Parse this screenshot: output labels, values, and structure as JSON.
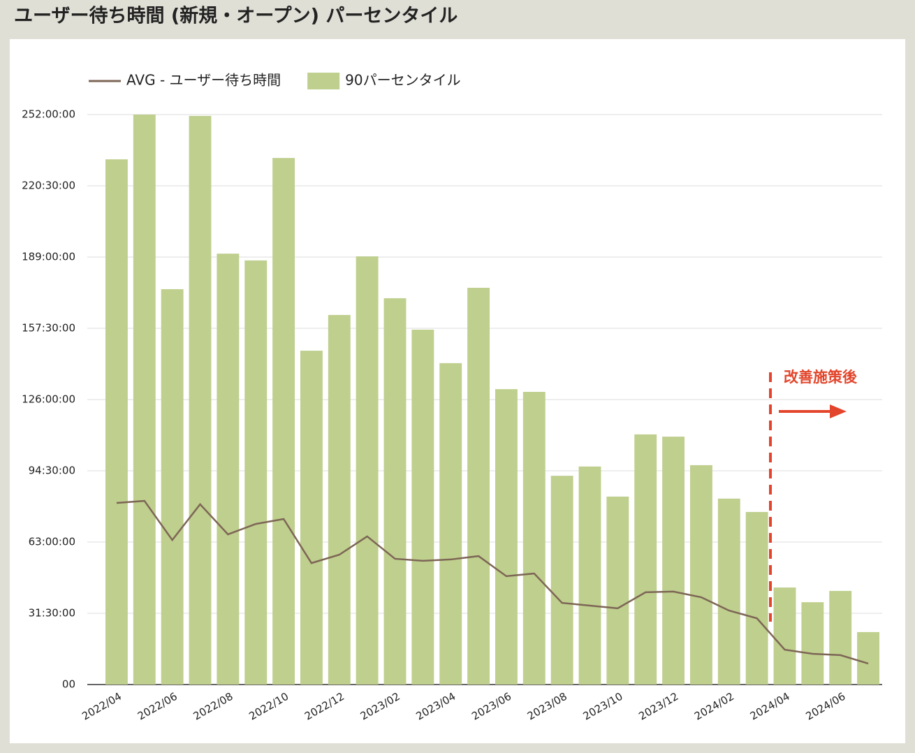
{
  "chart_data": {
    "type": "bar-line",
    "title": "ユーザー待ち時間 (新規・オープン) パーセンタイル",
    "annotation": "改善施策後",
    "categories": [
      "2022/04",
      null,
      "2022/06",
      null,
      "2022/08",
      null,
      "2022/10",
      null,
      "2022/12",
      null,
      "2023/02",
      null,
      "2023/04",
      null,
      "2023/06",
      null,
      "2023/08",
      null,
      "2023/10",
      null,
      "2023/12",
      null,
      "2024/02",
      null,
      "2024/04",
      null,
      "2024/06",
      null
    ],
    "series": [
      {
        "name": "AVG - ユーザー待ち時間",
        "type": "line",
        "color": "#7d6656",
        "values": [
          80.3,
          81.2,
          63.9,
          79.7,
          66.4,
          71.0,
          73.2,
          53.7,
          57.4,
          65.5,
          55.6,
          54.7,
          55.3,
          56.8,
          47.9,
          49.1,
          36.1,
          34.9,
          33.7,
          40.8,
          41.1,
          38.6,
          32.7,
          29.3,
          15.4,
          13.6,
          13.0,
          9.3
        ]
      },
      {
        "name": "90パーセンタイル",
        "type": "bar",
        "color": "#bfcf8e",
        "values": [
          232.2,
          252,
          174.8,
          251.4,
          190.5,
          187.5,
          232.8,
          147.6,
          163.4,
          189.3,
          170.8,
          156.9,
          142.1,
          175.4,
          130.6,
          129.4,
          92.3,
          96.4,
          83.1,
          110.6,
          109.6,
          97.0,
          82.2,
          76.3,
          42.9,
          36.4,
          41.4,
          23.2
        ]
      }
    ],
    "ylim": [
      0,
      252
    ],
    "yticks": [
      {
        "value": 0,
        "label": "00"
      },
      {
        "value": 31.5,
        "label": "31:30:00"
      },
      {
        "value": 63,
        "label": "63:00:00"
      },
      {
        "value": 94.5,
        "label": "94:30:00"
      },
      {
        "value": 126,
        "label": "126:00:00"
      },
      {
        "value": 157.5,
        "label": "157:30:00"
      },
      {
        "value": 189,
        "label": "189:00:00"
      },
      {
        "value": 220.5,
        "label": "220:30:00"
      },
      {
        "value": 252,
        "label": "252:00:00"
      }
    ],
    "grid": true
  }
}
